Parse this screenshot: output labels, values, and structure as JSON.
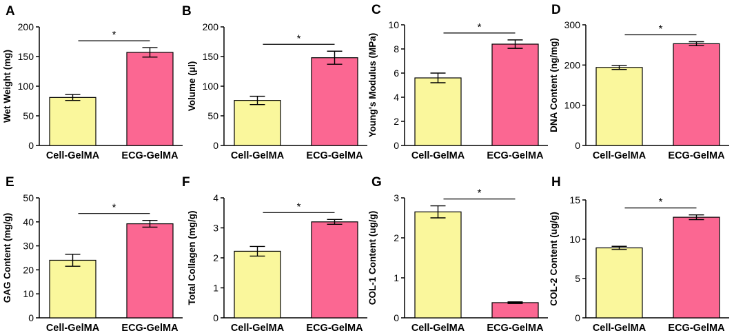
{
  "colors": {
    "cell": "#FAF79C",
    "ecg": "#FB6792",
    "stroke": "#000000"
  },
  "chart_data": [
    {
      "type": "bar",
      "panel": "A",
      "ylabel": "Wet Weight (mg)",
      "categories": [
        "Cell-GelMA",
        "ECG-GelMA"
      ],
      "values": [
        81,
        157
      ],
      "errors": [
        5,
        8
      ],
      "ylim": [
        0,
        200
      ],
      "yticks": [
        "0",
        "50",
        "100",
        "150",
        "200"
      ],
      "significance": "*"
    },
    {
      "type": "bar",
      "panel": "B",
      "ylabel": "Volume (μl)",
      "categories": [
        "Cell-GelMA",
        "ECG-GelMA"
      ],
      "values": [
        76,
        148
      ],
      "errors": [
        7,
        11
      ],
      "ylim": [
        0,
        200
      ],
      "yticks": [
        "0",
        "50",
        "100",
        "150",
        "200"
      ],
      "significance": "*"
    },
    {
      "type": "bar",
      "panel": "C",
      "ylabel": "Young's Modulus (MPa)",
      "categories": [
        "Cell-GelMA",
        "ECG-GelMA"
      ],
      "values": [
        5.6,
        8.4
      ],
      "errors": [
        0.4,
        0.35
      ],
      "ylim": [
        0,
        10
      ],
      "yticks": [
        "0",
        "2",
        "4",
        "6",
        "8",
        "10"
      ],
      "significance": "*"
    },
    {
      "type": "bar",
      "panel": "D",
      "ylabel": "DNA Content (ng/mg)",
      "categories": [
        "Cell-GelMA",
        "ECG-GelMA"
      ],
      "values": [
        194,
        253
      ],
      "errors": [
        5,
        5
      ],
      "ylim": [
        0,
        300
      ],
      "yticks": [
        "0",
        "100",
        "200",
        "300"
      ],
      "significance": "*"
    },
    {
      "type": "bar",
      "panel": "E",
      "ylabel": "GAG Content (mg/g)",
      "categories": [
        "Cell-GelMA",
        "ECG-GelMA"
      ],
      "values": [
        24,
        39.2
      ],
      "errors": [
        2.5,
        1.4
      ],
      "ylim": [
        0,
        50
      ],
      "yticks": [
        "0",
        "10",
        "20",
        "30",
        "40",
        "50"
      ],
      "significance": "*"
    },
    {
      "type": "bar",
      "panel": "F",
      "ylabel": "Total Collagen (mg/g)",
      "categories": [
        "Cell-GelMA",
        "ECG-GelMA"
      ],
      "values": [
        2.22,
        3.2
      ],
      "errors": [
        0.16,
        0.08
      ],
      "ylim": [
        0,
        4
      ],
      "yticks": [
        "0",
        "1",
        "2",
        "3",
        "4"
      ],
      "significance": "*"
    },
    {
      "type": "bar",
      "panel": "G",
      "ylabel": "COL-1 Content (ug/g)",
      "categories": [
        "Cell-GelMA",
        "ECG-GelMA"
      ],
      "values": [
        2.65,
        0.38
      ],
      "errors": [
        0.15,
        0.02
      ],
      "ylim": [
        0,
        3
      ],
      "yticks": [
        "0",
        "1",
        "2",
        "3"
      ],
      "significance": "*"
    },
    {
      "type": "bar",
      "panel": "H",
      "ylabel": "COL-2 Content (ug/g)",
      "categories": [
        "Cell-GelMA",
        "ECG-GelMA"
      ],
      "values": [
        8.9,
        12.8
      ],
      "errors": [
        0.2,
        0.3
      ],
      "ylim": [
        0,
        15
      ],
      "yticks": [
        "0",
        "5",
        "10",
        "15"
      ],
      "significance": "*"
    }
  ]
}
